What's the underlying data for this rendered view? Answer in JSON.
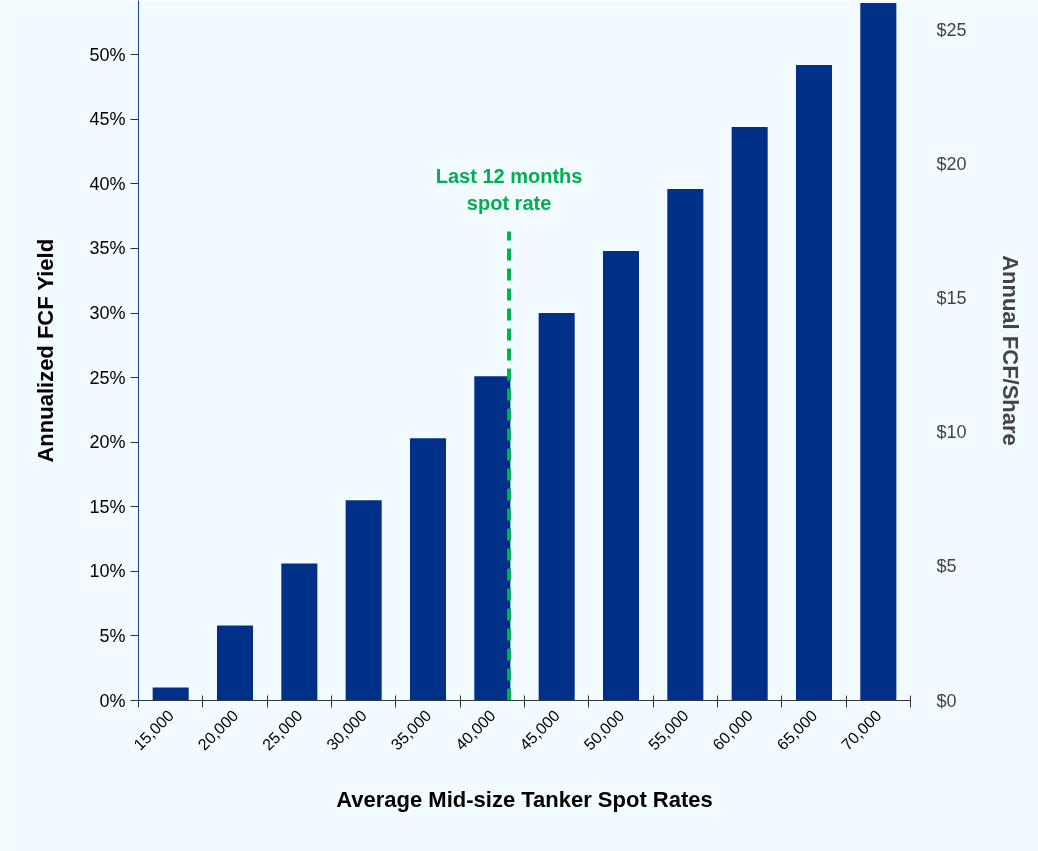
{
  "chart_data": {
    "type": "bar",
    "xlabel": "Average Mid-size Tanker Spot Rates",
    "ylabel": "Annualized FCF Yield",
    "y2label": "Annual FCF/Share",
    "x": [
      15000,
      20000,
      25000,
      30000,
      35000,
      40000,
      45000,
      50000,
      55000,
      60000,
      65000,
      70000
    ],
    "values": [
      1.0,
      5.8,
      10.6,
      15.5,
      20.3,
      25.1,
      30.0,
      34.8,
      39.6,
      44.4,
      49.2,
      54.0
    ],
    "color": "#003087",
    "xlim": [
      12500,
      72500
    ],
    "xticks": [
      {
        "value": 12500,
        "label": null
      },
      {
        "value": 15000,
        "label": "15,000"
      },
      {
        "value": 17500,
        "label": null
      },
      {
        "value": 20000,
        "label": "20,000"
      },
      {
        "value": 22500,
        "label": null
      },
      {
        "value": 25000,
        "label": "25,000"
      },
      {
        "value": 27500,
        "label": null
      },
      {
        "value": 30000,
        "label": "30,000"
      },
      {
        "value": 32500,
        "label": null
      },
      {
        "value": 35000,
        "label": "35,000"
      },
      {
        "value": 37500,
        "label": null
      },
      {
        "value": 40000,
        "label": "40,000"
      },
      {
        "value": 42500,
        "label": null
      },
      {
        "value": 45000,
        "label": "45,000"
      },
      {
        "value": 47500,
        "label": null
      },
      {
        "value": 50000,
        "label": "50,000"
      },
      {
        "value": 52500,
        "label": null
      },
      {
        "value": 55000,
        "label": "55,000"
      },
      {
        "value": 57500,
        "label": null
      },
      {
        "value": 60000,
        "label": "60,000"
      },
      {
        "value": 62500,
        "label": null
      },
      {
        "value": 65000,
        "label": "65,000"
      },
      {
        "value": 67500,
        "label": null
      },
      {
        "value": 70000,
        "label": "70,000"
      },
      {
        "value": 72500,
        "label": null
      }
    ],
    "ylim": [
      0,
      54.2
    ],
    "yticks": [
      {
        "value": 0,
        "label": "0%"
      },
      {
        "value": 5,
        "label": "5%"
      },
      {
        "value": 10,
        "label": "10%"
      },
      {
        "value": 15,
        "label": "15%"
      },
      {
        "value": 20,
        "label": "20%"
      },
      {
        "value": 25,
        "label": "25%"
      },
      {
        "value": 30,
        "label": "30%"
      },
      {
        "value": 35,
        "label": "35%"
      },
      {
        "value": 40,
        "label": "40%"
      },
      {
        "value": 45,
        "label": "45%"
      },
      {
        "value": 50,
        "label": "50%"
      }
    ],
    "y2lim": [
      0,
      26.1
    ],
    "y2ticks": [
      {
        "value": 0,
        "label": "$0"
      },
      {
        "value": 5,
        "label": "$5"
      },
      {
        "value": 10,
        "label": "$10"
      },
      {
        "value": 15,
        "label": "$15"
      },
      {
        "value": 20,
        "label": "$20"
      },
      {
        "value": 25,
        "label": "$25"
      }
    ],
    "ref_lines": [
      {
        "axis": "x",
        "value": 41300,
        "label": "Last 12 months\nspot rate",
        "color": "#00b050",
        "line_style": "dashed"
      }
    ],
    "grid": false
  }
}
